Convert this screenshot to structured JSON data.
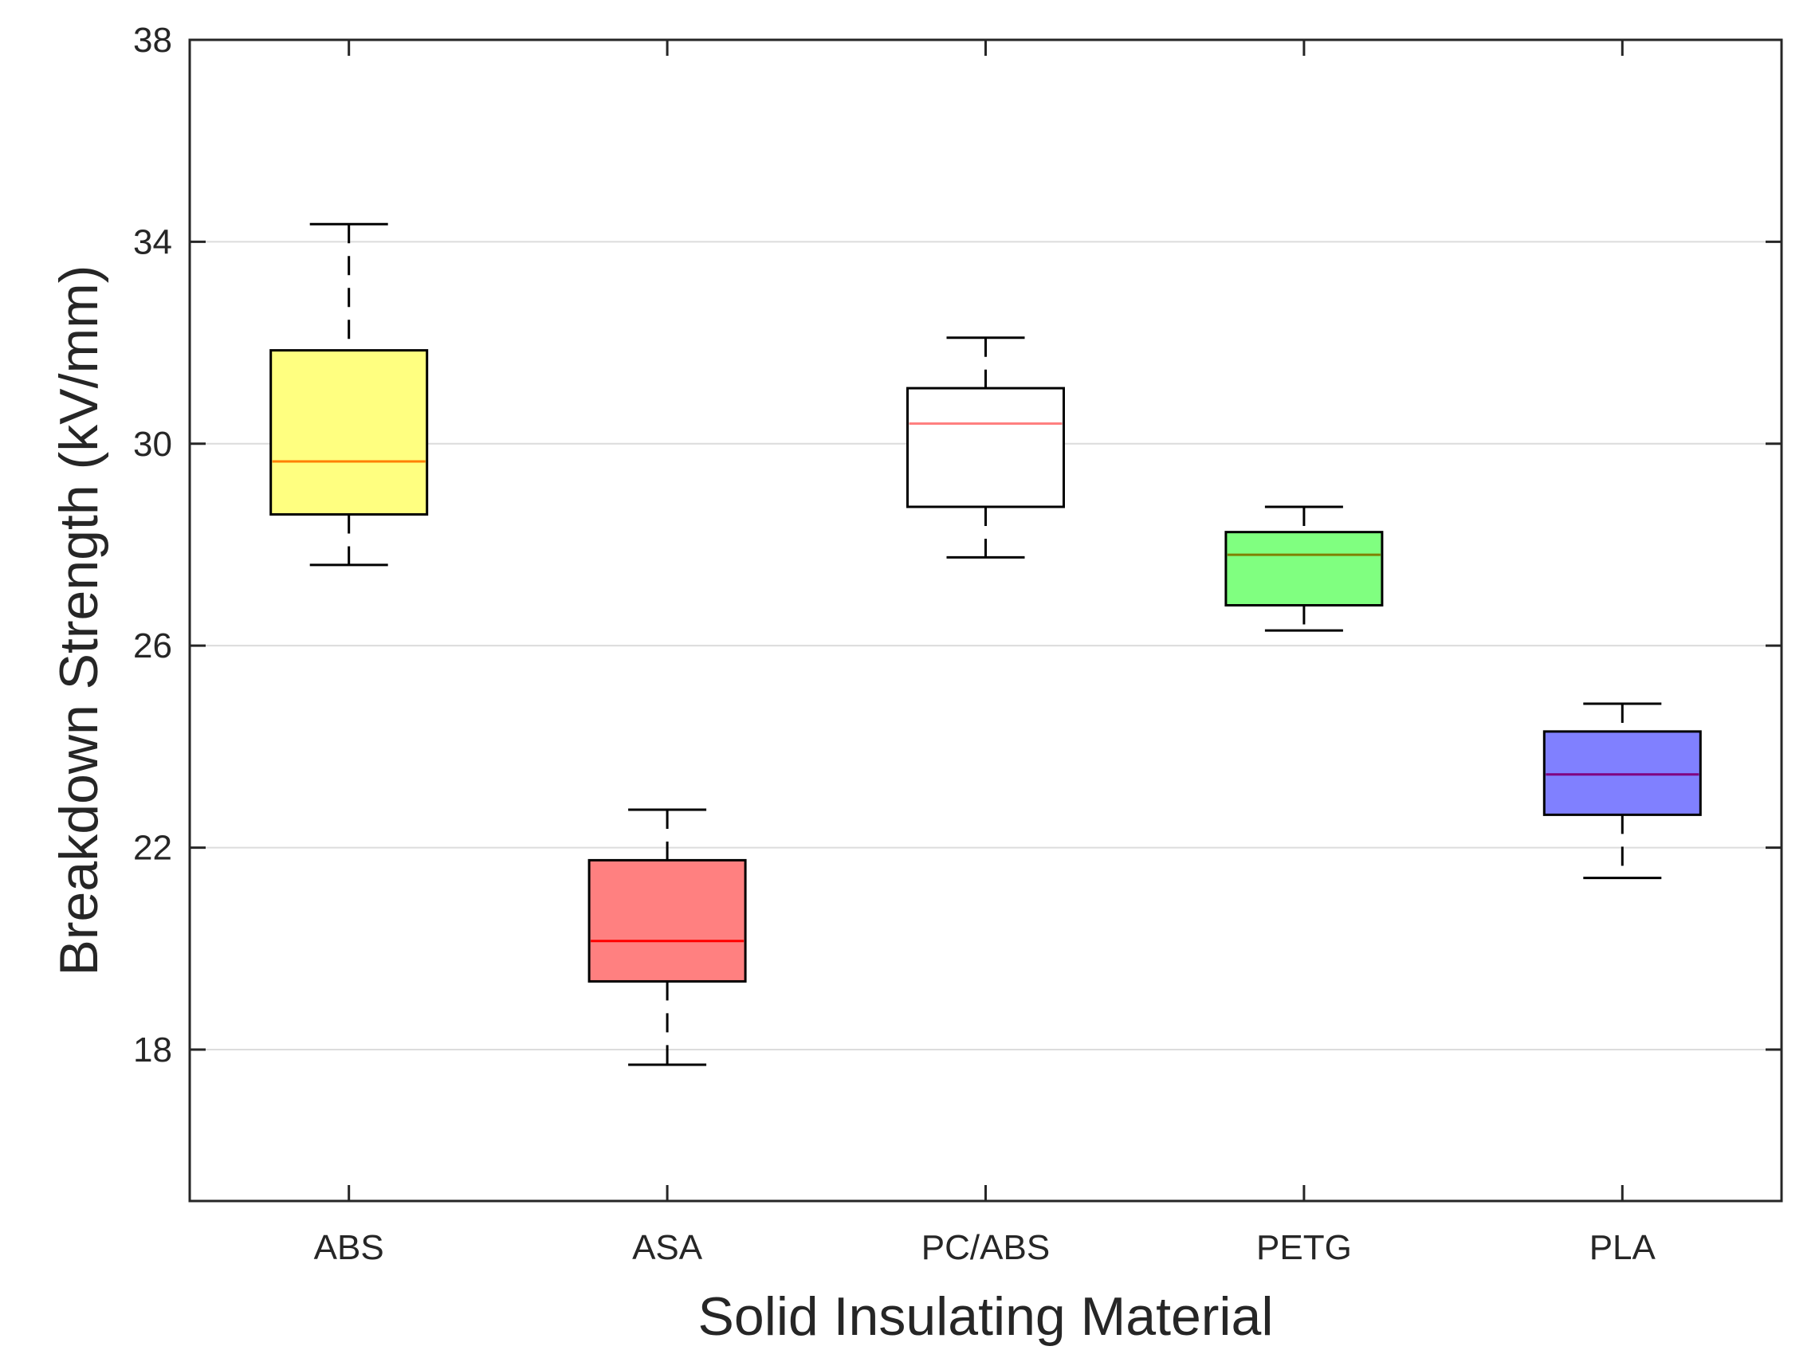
{
  "chart_data": {
    "type": "box",
    "title": "",
    "xlabel": "Solid Insulating Material",
    "ylabel": "Breakdown Strength (kV/mm)",
    "ylim": [
      15,
      38
    ],
    "yticks": [
      18,
      22,
      26,
      30,
      34,
      38
    ],
    "grid": "horizontal",
    "categories": [
      "ABS",
      "ASA",
      "PC/ABS",
      "PETG",
      "PLA"
    ],
    "boxes": [
      {
        "category": "ABS",
        "min": 27.6,
        "q1": 28.6,
        "median": 29.65,
        "q3": 31.85,
        "max": 34.35,
        "fill": "#ffff80",
        "median_color": "#ff8000"
      },
      {
        "category": "ASA",
        "min": 17.7,
        "q1": 19.35,
        "median": 20.15,
        "q3": 21.75,
        "max": 22.75,
        "fill": "#ff8080",
        "median_color": "#ff0000"
      },
      {
        "category": "PC/ABS",
        "min": 27.75,
        "q1": 28.75,
        "median": 30.4,
        "q3": 31.1,
        "max": 32.1,
        "fill": "#ffffff",
        "median_color": "#ff8080"
      },
      {
        "category": "PETG",
        "min": 26.3,
        "q1": 26.8,
        "median": 27.8,
        "q3": 28.25,
        "max": 28.75,
        "fill": "#80ff80",
        "median_color": "#808000"
      },
      {
        "category": "PLA",
        "min": 21.4,
        "q1": 22.65,
        "median": 23.45,
        "q3": 24.3,
        "max": 24.85,
        "fill": "#8080ff",
        "median_color": "#800080"
      }
    ]
  }
}
